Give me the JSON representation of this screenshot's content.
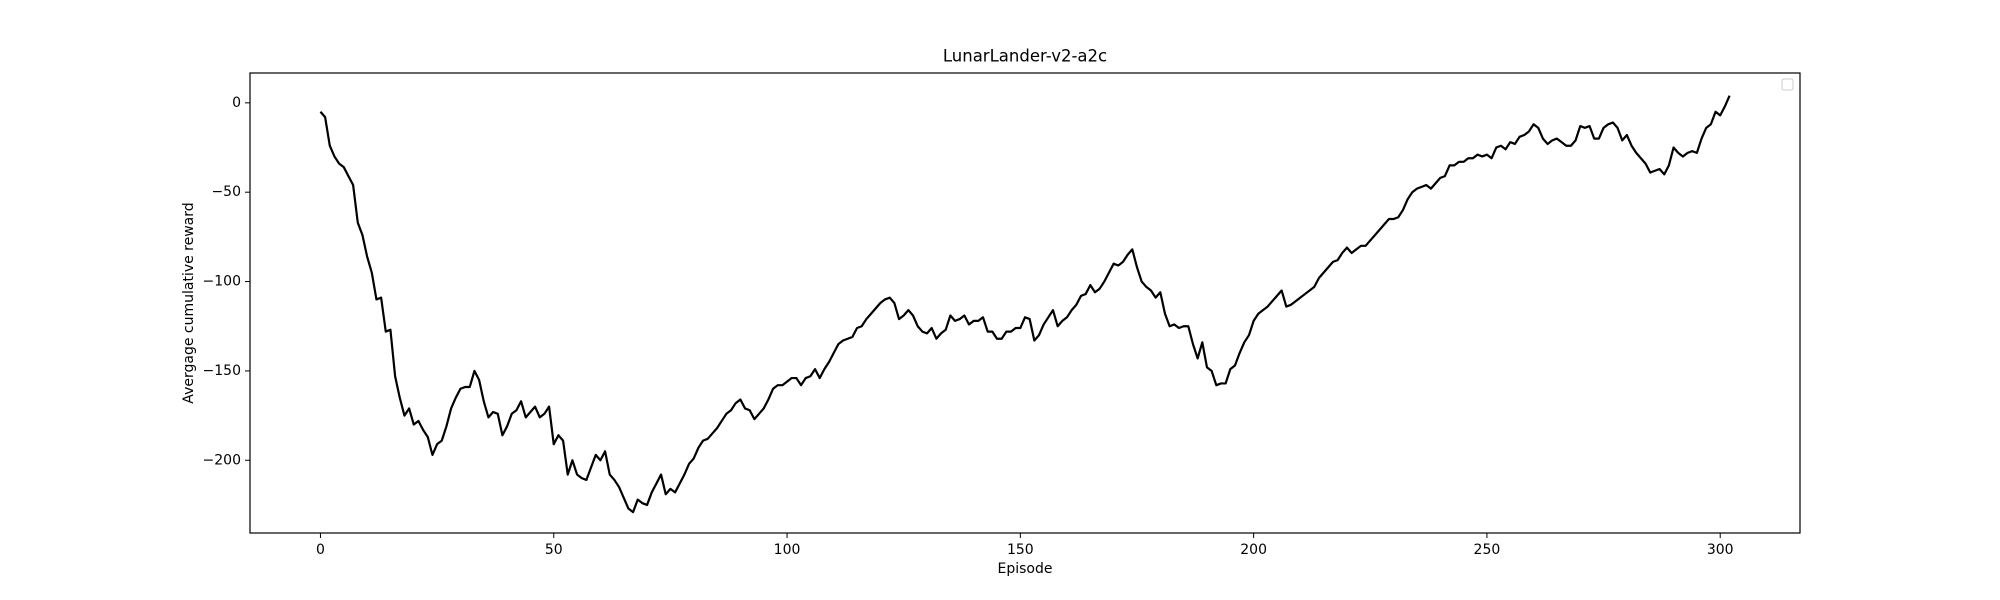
{
  "chart_data": {
    "type": "line",
    "title": "LunarLander-v2-a2c",
    "xlabel": "Episode",
    "ylabel": "Avergage cumulative reward",
    "color": "#000000",
    "x": [
      0,
      1,
      2,
      3,
      4,
      5,
      6,
      7,
      8,
      9,
      10,
      11,
      12,
      13,
      14,
      15,
      16,
      17,
      18,
      19,
      20,
      21,
      22,
      23,
      24,
      25,
      26,
      27,
      28,
      29,
      30,
      31,
      32,
      33,
      34,
      35,
      36,
      37,
      38,
      39,
      40,
      41,
      42,
      43,
      44,
      45,
      46,
      47,
      48,
      49,
      50,
      51,
      52,
      53,
      54,
      55,
      56,
      57,
      58,
      59,
      60,
      61,
      62,
      63,
      64,
      65,
      66,
      67,
      68,
      69,
      70,
      71,
      72,
      73,
      74,
      75,
      76,
      77,
      78,
      79,
      80,
      81,
      82,
      83,
      84,
      85,
      86,
      87,
      88,
      89,
      90,
      91,
      92,
      93,
      94,
      95,
      96,
      97,
      98,
      99,
      100,
      101,
      102,
      103,
      104,
      105,
      106,
      107,
      108,
      109,
      110,
      111,
      112,
      113,
      114,
      115,
      116,
      117,
      118,
      119,
      120,
      121,
      122,
      123,
      124,
      125,
      126,
      127,
      128,
      129,
      130,
      131,
      132,
      133,
      134,
      135,
      136,
      137,
      138,
      139,
      140,
      141,
      142,
      143,
      144,
      145,
      146,
      147,
      148,
      149,
      150,
      151,
      152,
      153,
      154,
      155,
      156,
      157,
      158,
      159,
      160,
      161,
      162,
      163,
      164,
      165,
      166,
      167,
      168,
      169,
      170,
      171,
      172,
      173,
      174,
      175,
      176,
      177,
      178,
      179,
      180,
      181,
      182,
      183,
      184,
      185,
      186,
      187,
      188,
      189,
      190,
      191,
      192,
      193,
      194,
      195,
      196,
      197,
      198,
      199,
      200,
      201,
      202,
      203,
      204,
      205,
      206,
      207,
      208,
      209,
      210,
      211,
      212,
      213,
      214,
      215,
      216,
      217,
      218,
      219,
      220,
      221,
      222,
      223,
      224,
      225,
      226,
      227,
      228,
      229,
      230,
      231,
      232,
      233,
      234,
      235,
      236,
      237,
      238,
      239,
      240,
      241,
      242,
      243,
      244,
      245,
      246,
      247,
      248,
      249,
      250,
      251,
      252,
      253,
      254,
      255,
      256,
      257,
      258,
      259,
      260,
      261,
      262,
      263,
      264,
      265,
      266,
      267,
      268,
      269,
      270,
      271,
      272,
      273,
      274,
      275,
      276,
      277,
      278,
      279,
      280,
      281,
      282,
      283,
      284,
      285,
      286,
      287,
      288,
      289,
      290,
      291,
      292,
      293,
      294,
      295,
      296,
      297,
      298,
      299,
      300,
      301,
      302
    ],
    "values": [
      -5,
      -8,
      -24,
      -30,
      -34,
      -36,
      -41,
      -46,
      -67,
      -74,
      -86,
      -95,
      -110,
      -109,
      -128,
      -127,
      -153,
      -165,
      -175,
      -171,
      -180,
      -178,
      -183,
      -187,
      -197,
      -191,
      -189,
      -181,
      -171,
      -165,
      -160,
      -159,
      -159,
      -150,
      -155,
      -167,
      -176,
      -173,
      -174,
      -186,
      -181,
      -174,
      -172,
      -167,
      -176,
      -173,
      -170,
      -176,
      -174,
      -170,
      -191,
      -186,
      -189,
      -208,
      -200,
      -208,
      -210,
      -211,
      -204,
      -197,
      -200,
      -195,
      -208,
      -211,
      -215,
      -221,
      -227,
      -229,
      -222,
      -224,
      -225,
      -218,
      -213,
      -208,
      -219,
      -216,
      -218,
      -213,
      -208,
      -202,
      -199,
      -193,
      -189,
      -188,
      -185,
      -182,
      -178,
      -174,
      -172,
      -168,
      -166,
      -171,
      -172,
      -177,
      -174,
      -171,
      -166,
      -160,
      -158,
      -158,
      -156,
      -154,
      -154,
      -158,
      -154,
      -153,
      -149,
      -154,
      -149,
      -145,
      -140,
      -135,
      -133,
      -132,
      -131,
      -126,
      -125,
      -121,
      -118,
      -115,
      -112,
      -110,
      -109,
      -112,
      -121,
      -119,
      -116,
      -119,
      -125,
      -128,
      -129,
      -126,
      -132,
      -129,
      -127,
      -119,
      -122,
      -121,
      -119,
      -124,
      -122,
      -122,
      -120,
      -128,
      -128,
      -132,
      -132,
      -128,
      -128,
      -126,
      -126,
      -120,
      -121,
      -133,
      -130,
      -124,
      -120,
      -116,
      -125,
      -122,
      -120,
      -116,
      -113,
      -108,
      -107,
      -102,
      -106,
      -104,
      -100,
      -95,
      -90,
      -91,
      -89,
      -85,
      -82,
      -92,
      -100,
      -103,
      -105,
      -109,
      -106,
      -118,
      -125,
      -124,
      -126,
      -125,
      -125,
      -135,
      -143,
      -134,
      -148,
      -150,
      -158,
      -157,
      -157,
      -149,
      -147,
      -140,
      -134,
      -130,
      -122,
      -118,
      -116,
      -114,
      -111,
      -108,
      -105,
      -114,
      -113,
      -111,
      -109,
      -107,
      -105,
      -103,
      -98,
      -95,
      -92,
      -89,
      -88,
      -84,
      -81,
      -84,
      -82,
      -80,
      -80,
      -77,
      -74,
      -71,
      -68,
      -65,
      -65,
      -64,
      -60,
      -54,
      -50,
      -48,
      -47,
      -46,
      -48,
      -45,
      -42,
      -41,
      -35,
      -35,
      -33,
      -33,
      -31,
      -31,
      -29,
      -30,
      -29,
      -31,
      -25,
      -24,
      -26,
      -22,
      -23,
      -19,
      -18,
      -16,
      -12,
      -14,
      -20,
      -23,
      -21,
      -20,
      -22,
      -24,
      -24,
      -21,
      -13,
      -14,
      -13,
      -20,
      -20,
      -14,
      -12,
      -11,
      -14,
      -21,
      -18,
      -24,
      -28,
      -31,
      -34,
      -39,
      -38,
      -37,
      -40,
      -35,
      -25,
      -28,
      -30,
      -28,
      -27,
      -28,
      -20,
      -14,
      -12,
      -5,
      -7,
      -2,
      4
    ],
    "xlim": [
      -15.1,
      317.1
    ],
    "ylim": [
      -240.7,
      16.7
    ],
    "xticks": [
      0,
      50,
      100,
      150,
      200,
      250,
      300
    ],
    "yticks": [
      0,
      {
        "value": -50,
        "label": "−50"
      },
      {
        "value": -100,
        "label": "−100"
      },
      {
        "value": -150,
        "label": "−150"
      },
      {
        "value": -200,
        "label": "−200"
      }
    ]
  }
}
